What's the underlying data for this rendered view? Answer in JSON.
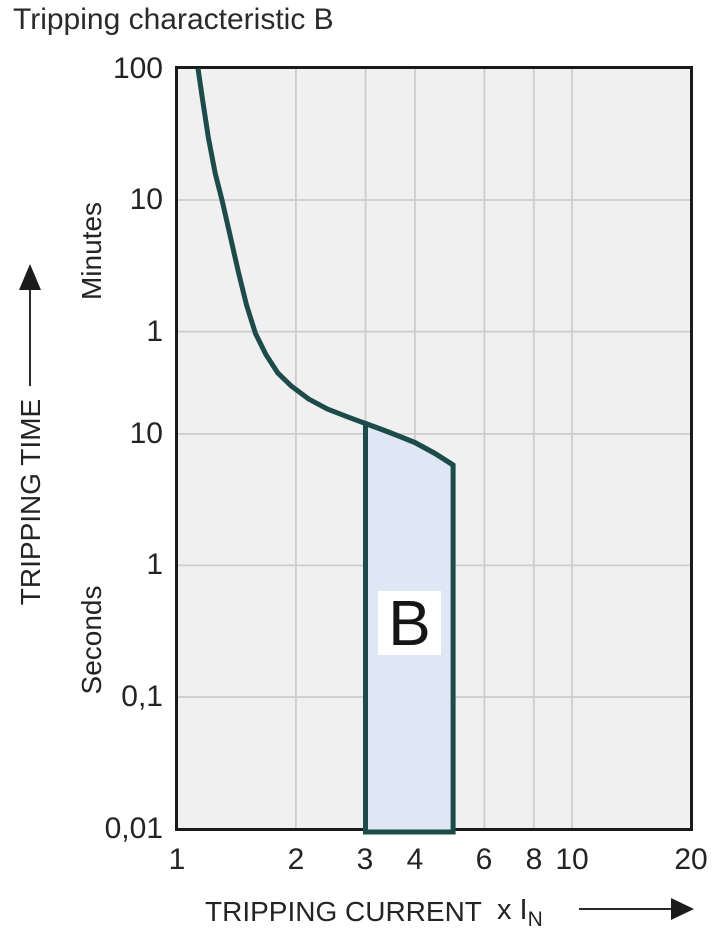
{
  "title": "Tripping characteristic B",
  "y_axis": {
    "label": "TRIPPING TIME",
    "units": {
      "upper": "Minutes",
      "lower": "Seconds"
    },
    "ticks": [
      {
        "label": "100",
        "seconds": 6000
      },
      {
        "label": "10",
        "seconds": 600
      },
      {
        "label": "1",
        "seconds": 60
      },
      {
        "label": "10",
        "seconds": 10
      },
      {
        "label": "1",
        "seconds": 1
      },
      {
        "label": "0,1",
        "seconds": 0.1
      },
      {
        "label": "0,01",
        "seconds": 0.01
      }
    ]
  },
  "x_axis": {
    "label": "TRIPPING CURRENT",
    "multiplier_prefix": "x I",
    "multiplier_sub": "N",
    "ticks": [
      {
        "label": "1",
        "value": 1
      },
      {
        "label": "2",
        "value": 2
      },
      {
        "label": "3",
        "value": 3
      },
      {
        "label": "4",
        "value": 4
      },
      {
        "label": "6",
        "value": 6
      },
      {
        "label": "8",
        "value": 8
      },
      {
        "label": "10",
        "value": 10
      },
      {
        "label": "20",
        "value": 20
      }
    ]
  },
  "chart_data": {
    "type": "line",
    "title": "Tripping characteristic B",
    "xlabel": "TRIPPING CURRENT x IN",
    "ylabel": "TRIPPING TIME",
    "x_scale": "log",
    "y_scale": "log",
    "x_range": [
      1,
      20
    ],
    "y_range_seconds": [
      0.01,
      6000
    ],
    "x_gridlines": [
      2,
      3,
      4,
      6,
      8,
      10
    ],
    "y_gridlines_seconds": [
      600,
      60,
      10,
      1,
      0.1
    ],
    "grid_on": true,
    "series": [
      {
        "name": "B tripping characteristic curve",
        "color": "#1d4b4a",
        "points_x_multiple_vs_seconds": [
          [
            1.13,
            6000
          ],
          [
            1.16,
            3500
          ],
          [
            1.2,
            1800
          ],
          [
            1.25,
            950
          ],
          [
            1.3,
            600
          ],
          [
            1.36,
            330
          ],
          [
            1.43,
            170
          ],
          [
            1.5,
            95
          ],
          [
            1.58,
            58
          ],
          [
            1.68,
            40
          ],
          [
            1.8,
            29
          ],
          [
            1.95,
            23
          ],
          [
            2.15,
            18.5
          ],
          [
            2.4,
            15.5
          ],
          [
            2.7,
            13.5
          ],
          [
            3.0,
            12.0
          ],
          [
            3.3,
            10.8
          ],
          [
            3.65,
            9.6
          ],
          [
            4.0,
            8.6
          ],
          [
            4.5,
            7.1
          ],
          [
            5.0,
            5.8
          ]
        ]
      }
    ],
    "band": {
      "label": "B",
      "x_from": 3,
      "x_to": 5,
      "top_seconds_at_x_from": 12.0,
      "top_seconds_at_x_to": 5.8,
      "bottom_seconds": 0.01,
      "fill": "#dfe6f4",
      "stroke": "#1d4b4a"
    },
    "colors": {
      "plot_background": "#f0f0f0",
      "gridline": "#cdcdcd",
      "border": "#1a1a1a",
      "curve": "#1d4b4a",
      "band_fill": "#dfe6f4",
      "text": "#242424"
    }
  }
}
